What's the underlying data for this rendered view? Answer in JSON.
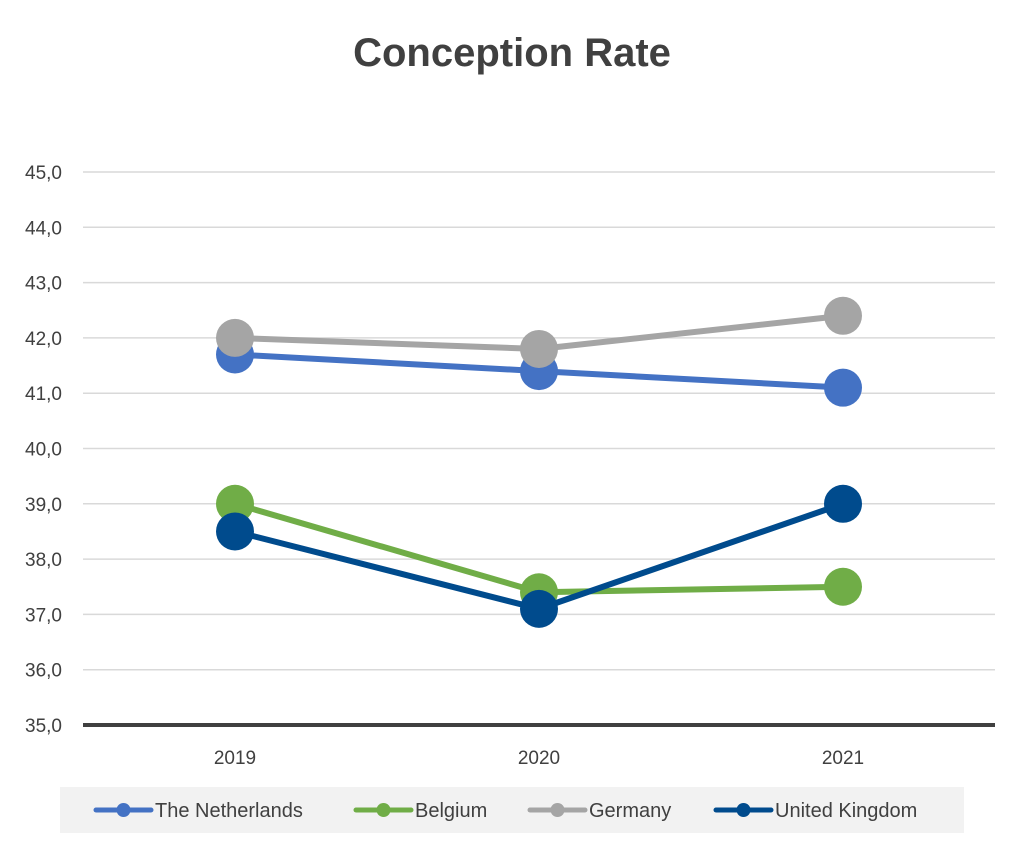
{
  "chart_data": {
    "type": "line",
    "title": "Conception Rate",
    "xlabel": "",
    "ylabel": "",
    "categories": [
      "2019",
      "2020",
      "2021"
    ],
    "y_tick_labels": [
      "35,0",
      "36,0",
      "37,0",
      "38,0",
      "39,0",
      "40,0",
      "41,0",
      "42,0",
      "43,0",
      "44,0",
      "45,0"
    ],
    "ylim": [
      35,
      45
    ],
    "grid": true,
    "legend_position": "bottom",
    "series": [
      {
        "name": "The Netherlands",
        "values": [
          41.7,
          41.4,
          41.1
        ],
        "color": "#4472c4"
      },
      {
        "name": "Belgium",
        "values": [
          39.0,
          37.4,
          37.5
        ],
        "color": "#70ad47"
      },
      {
        "name": "Germany",
        "values": [
          42.0,
          41.8,
          42.4
        ],
        "color": "#a5a5a5"
      },
      {
        "name": "United Kingdom",
        "values": [
          38.5,
          37.1,
          39.0
        ],
        "color": "#004b8d"
      }
    ]
  }
}
